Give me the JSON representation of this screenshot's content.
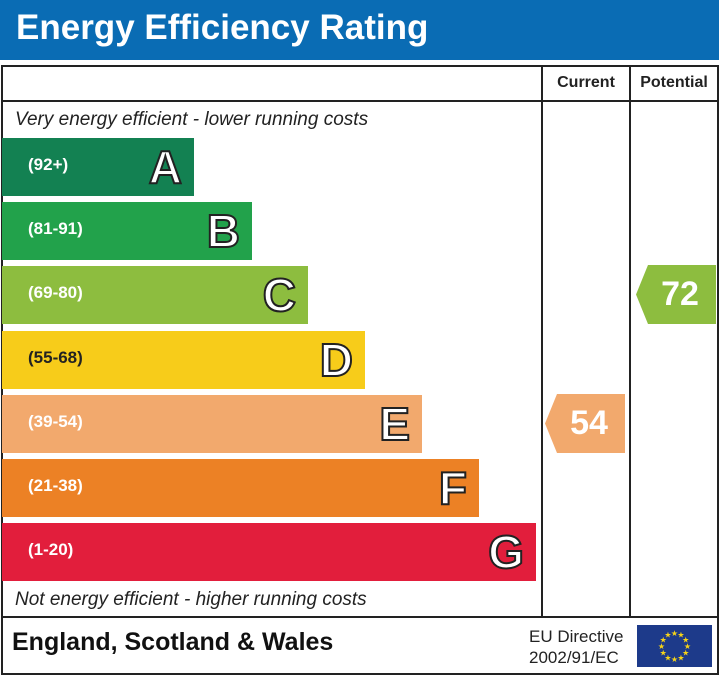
{
  "header": {
    "title": "Energy Efficiency Rating"
  },
  "columns": {
    "current": "Current",
    "potential": "Potential"
  },
  "notes": {
    "top": "Very energy efficient - lower running costs",
    "bottom": "Not energy efficient - higher running costs"
  },
  "footer": {
    "region": "England, Scotland & Wales",
    "directive_line1": "EU Directive",
    "directive_line2": "2002/91/EC"
  },
  "chart_data": {
    "type": "bar",
    "categories": [
      "A",
      "B",
      "C",
      "D",
      "E",
      "F",
      "G"
    ],
    "bands": [
      {
        "letter": "A",
        "range": "(92+)",
        "color": "#138152"
      },
      {
        "letter": "B",
        "range": "(81-91)",
        "color": "#22a24b"
      },
      {
        "letter": "C",
        "range": "(69-80)",
        "color": "#8dbd3f"
      },
      {
        "letter": "D",
        "range": "(55-68)",
        "color": "#f7cc1a"
      },
      {
        "letter": "E",
        "range": "(39-54)",
        "color": "#f2a96d"
      },
      {
        "letter": "F",
        "range": "(21-38)",
        "color": "#ec8125"
      },
      {
        "letter": "G",
        "range": "(1-20)",
        "color": "#e21e3c"
      }
    ],
    "current": {
      "value": "54",
      "band": "E",
      "color": "#f2a96d"
    },
    "potential": {
      "value": "72",
      "band": "C",
      "color": "#8dbd3f"
    }
  }
}
